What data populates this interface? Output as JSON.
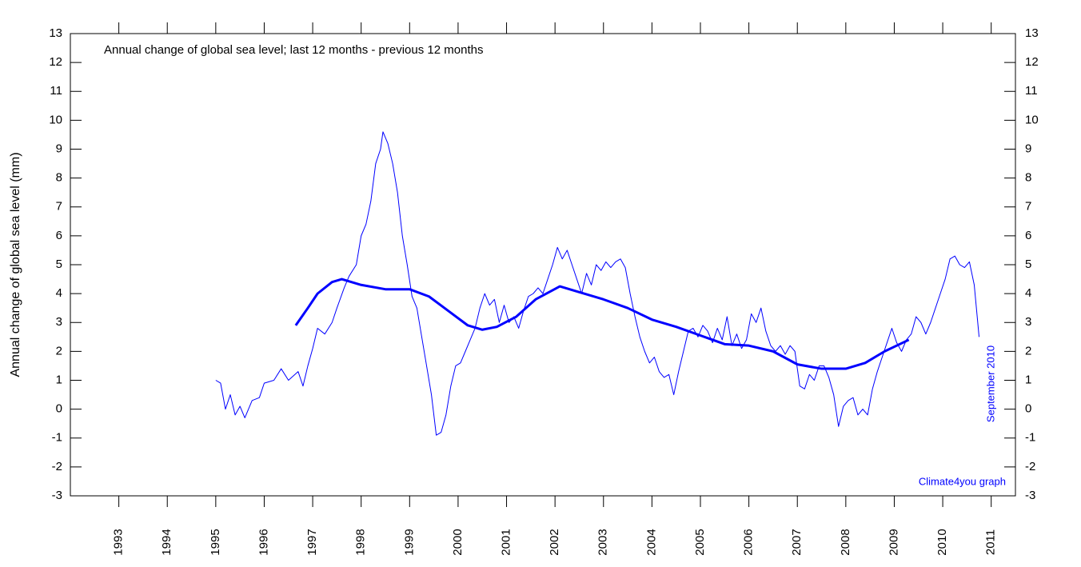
{
  "chart_data": {
    "type": "line",
    "title": "Annual change of global sea level; last 12 months - previous 12 months",
    "ylabel": "Annual change of global sea level (mm)",
    "annotations": [
      "September 2010",
      "Climate4you graph"
    ],
    "xlim": [
      1992,
      2011.5
    ],
    "xticks": [
      1993,
      1994,
      1995,
      1996,
      1997,
      1998,
      1999,
      2000,
      2001,
      2002,
      2003,
      2004,
      2005,
      2006,
      2007,
      2008,
      2009,
      2010,
      2011
    ],
    "ylim": [
      -3,
      13
    ],
    "yticks": [
      -3,
      -2,
      -1,
      0,
      1,
      2,
      3,
      4,
      5,
      6,
      7,
      8,
      9,
      10,
      11,
      12,
      13
    ],
    "series": [
      {
        "color": "#0000ff",
        "width": 1,
        "x": [
          1995.0,
          1995.1,
          1995.2,
          1995.3,
          1995.4,
          1995.5,
          1995.6,
          1995.75,
          1995.9,
          1996.0,
          1996.2,
          1996.35,
          1996.5,
          1996.7,
          1996.8,
          1996.9,
          1997.0,
          1997.1,
          1997.25,
          1997.4,
          1997.5,
          1997.65,
          1997.75,
          1997.9,
          1998.0,
          1998.1,
          1998.2,
          1998.3,
          1998.4,
          1998.45,
          1998.55,
          1998.65,
          1998.75,
          1998.85,
          1998.95,
          1999.05,
          1999.15,
          1999.25,
          1999.35,
          1999.45,
          1999.55,
          1999.65,
          1999.75,
          1999.85,
          1999.95,
          2000.05,
          2000.15,
          2000.25,
          2000.35,
          2000.45,
          2000.55,
          2000.65,
          2000.75,
          2000.85,
          2000.95,
          2001.05,
          2001.15,
          2001.25,
          2001.35,
          2001.45,
          2001.55,
          2001.65,
          2001.75,
          2001.85,
          2001.95,
          2002.05,
          2002.15,
          2002.25,
          2002.35,
          2002.45,
          2002.55,
          2002.65,
          2002.75,
          2002.85,
          2002.95,
          2003.05,
          2003.15,
          2003.25,
          2003.35,
          2003.45,
          2003.55,
          2003.65,
          2003.75,
          2003.85,
          2003.95,
          2004.05,
          2004.15,
          2004.25,
          2004.35,
          2004.45,
          2004.55,
          2004.65,
          2004.75,
          2004.85,
          2004.95,
          2005.05,
          2005.15,
          2005.25,
          2005.35,
          2005.45,
          2005.55,
          2005.65,
          2005.75,
          2005.85,
          2005.95,
          2006.05,
          2006.15,
          2006.25,
          2006.35,
          2006.45,
          2006.55,
          2006.65,
          2006.75,
          2006.85,
          2006.95,
          2007.05,
          2007.15,
          2007.25,
          2007.35,
          2007.45,
          2007.55,
          2007.65,
          2007.75,
          2007.85,
          2007.95,
          2008.05,
          2008.15,
          2008.25,
          2008.35,
          2008.45,
          2008.55,
          2008.65,
          2008.75,
          2008.85,
          2008.95,
          2009.05,
          2009.15,
          2009.25,
          2009.35,
          2009.45,
          2009.55,
          2009.65,
          2009.75,
          2009.85,
          2009.95,
          2010.05,
          2010.15,
          2010.25,
          2010.35,
          2010.45,
          2010.55,
          2010.65,
          2010.75
        ],
        "values": [
          1.0,
          0.9,
          0.0,
          0.5,
          -0.2,
          0.1,
          -0.3,
          0.3,
          0.4,
          0.9,
          1.0,
          1.4,
          1.0,
          1.3,
          0.8,
          1.5,
          2.1,
          2.8,
          2.6,
          3.0,
          3.5,
          4.2,
          4.6,
          5.0,
          6.0,
          6.4,
          7.2,
          8.5,
          9.0,
          9.6,
          9.2,
          8.5,
          7.5,
          6.0,
          5.0,
          3.9,
          3.5,
          2.5,
          1.5,
          0.5,
          -0.9,
          -0.8,
          -0.2,
          0.8,
          1.5,
          1.6,
          2.0,
          2.4,
          2.8,
          3.5,
          4.0,
          3.6,
          3.8,
          3.0,
          3.6,
          3.0,
          3.2,
          2.8,
          3.4,
          3.9,
          4.0,
          4.2,
          4.0,
          4.5,
          5.0,
          5.6,
          5.2,
          5.5,
          5.0,
          4.5,
          4.0,
          4.7,
          4.3,
          5.0,
          4.8,
          5.1,
          4.9,
          5.1,
          5.2,
          4.9,
          4.0,
          3.2,
          2.5,
          2.0,
          1.6,
          1.8,
          1.3,
          1.1,
          1.2,
          0.5,
          1.3,
          2.0,
          2.7,
          2.8,
          2.5,
          2.9,
          2.7,
          2.3,
          2.8,
          2.4,
          3.2,
          2.2,
          2.6,
          2.1,
          2.4,
          3.3,
          3.0,
          3.5,
          2.7,
          2.2,
          2.0,
          2.2,
          1.9,
          2.2,
          2.0,
          0.8,
          0.7,
          1.2,
          1.0,
          1.5,
          1.5,
          1.1,
          0.5,
          -0.6,
          0.1,
          0.3,
          0.4,
          -0.2,
          0.0,
          -0.2,
          0.7,
          1.3,
          1.8,
          2.3,
          2.8,
          2.3,
          2.0,
          2.4,
          2.6,
          3.2,
          3.0,
          2.6,
          3.0,
          3.5,
          4.0,
          4.5,
          5.2,
          5.3,
          5.0,
          4.9,
          5.1,
          4.3,
          2.5
        ]
      },
      {
        "color": "#0000ff",
        "width": 3,
        "x": [
          1996.65,
          1996.9,
          1997.1,
          1997.4,
          1997.6,
          1998.0,
          1998.5,
          1999.0,
          1999.4,
          1999.8,
          2000.2,
          2000.5,
          2000.8,
          2001.2,
          2001.6,
          2002.1,
          2002.5,
          2003.0,
          2003.5,
          2004.0,
          2004.5,
          2005.0,
          2005.5,
          2006.0,
          2006.5,
          2007.0,
          2007.5,
          2008.0,
          2008.4,
          2008.8,
          2009.3
        ],
        "values": [
          2.9,
          3.5,
          4.0,
          4.4,
          4.5,
          4.3,
          4.15,
          4.15,
          3.9,
          3.4,
          2.9,
          2.75,
          2.85,
          3.2,
          3.8,
          4.25,
          4.05,
          3.8,
          3.5,
          3.1,
          2.85,
          2.55,
          2.25,
          2.2,
          2.0,
          1.55,
          1.4,
          1.4,
          1.6,
          2.0,
          2.4
        ]
      }
    ]
  }
}
